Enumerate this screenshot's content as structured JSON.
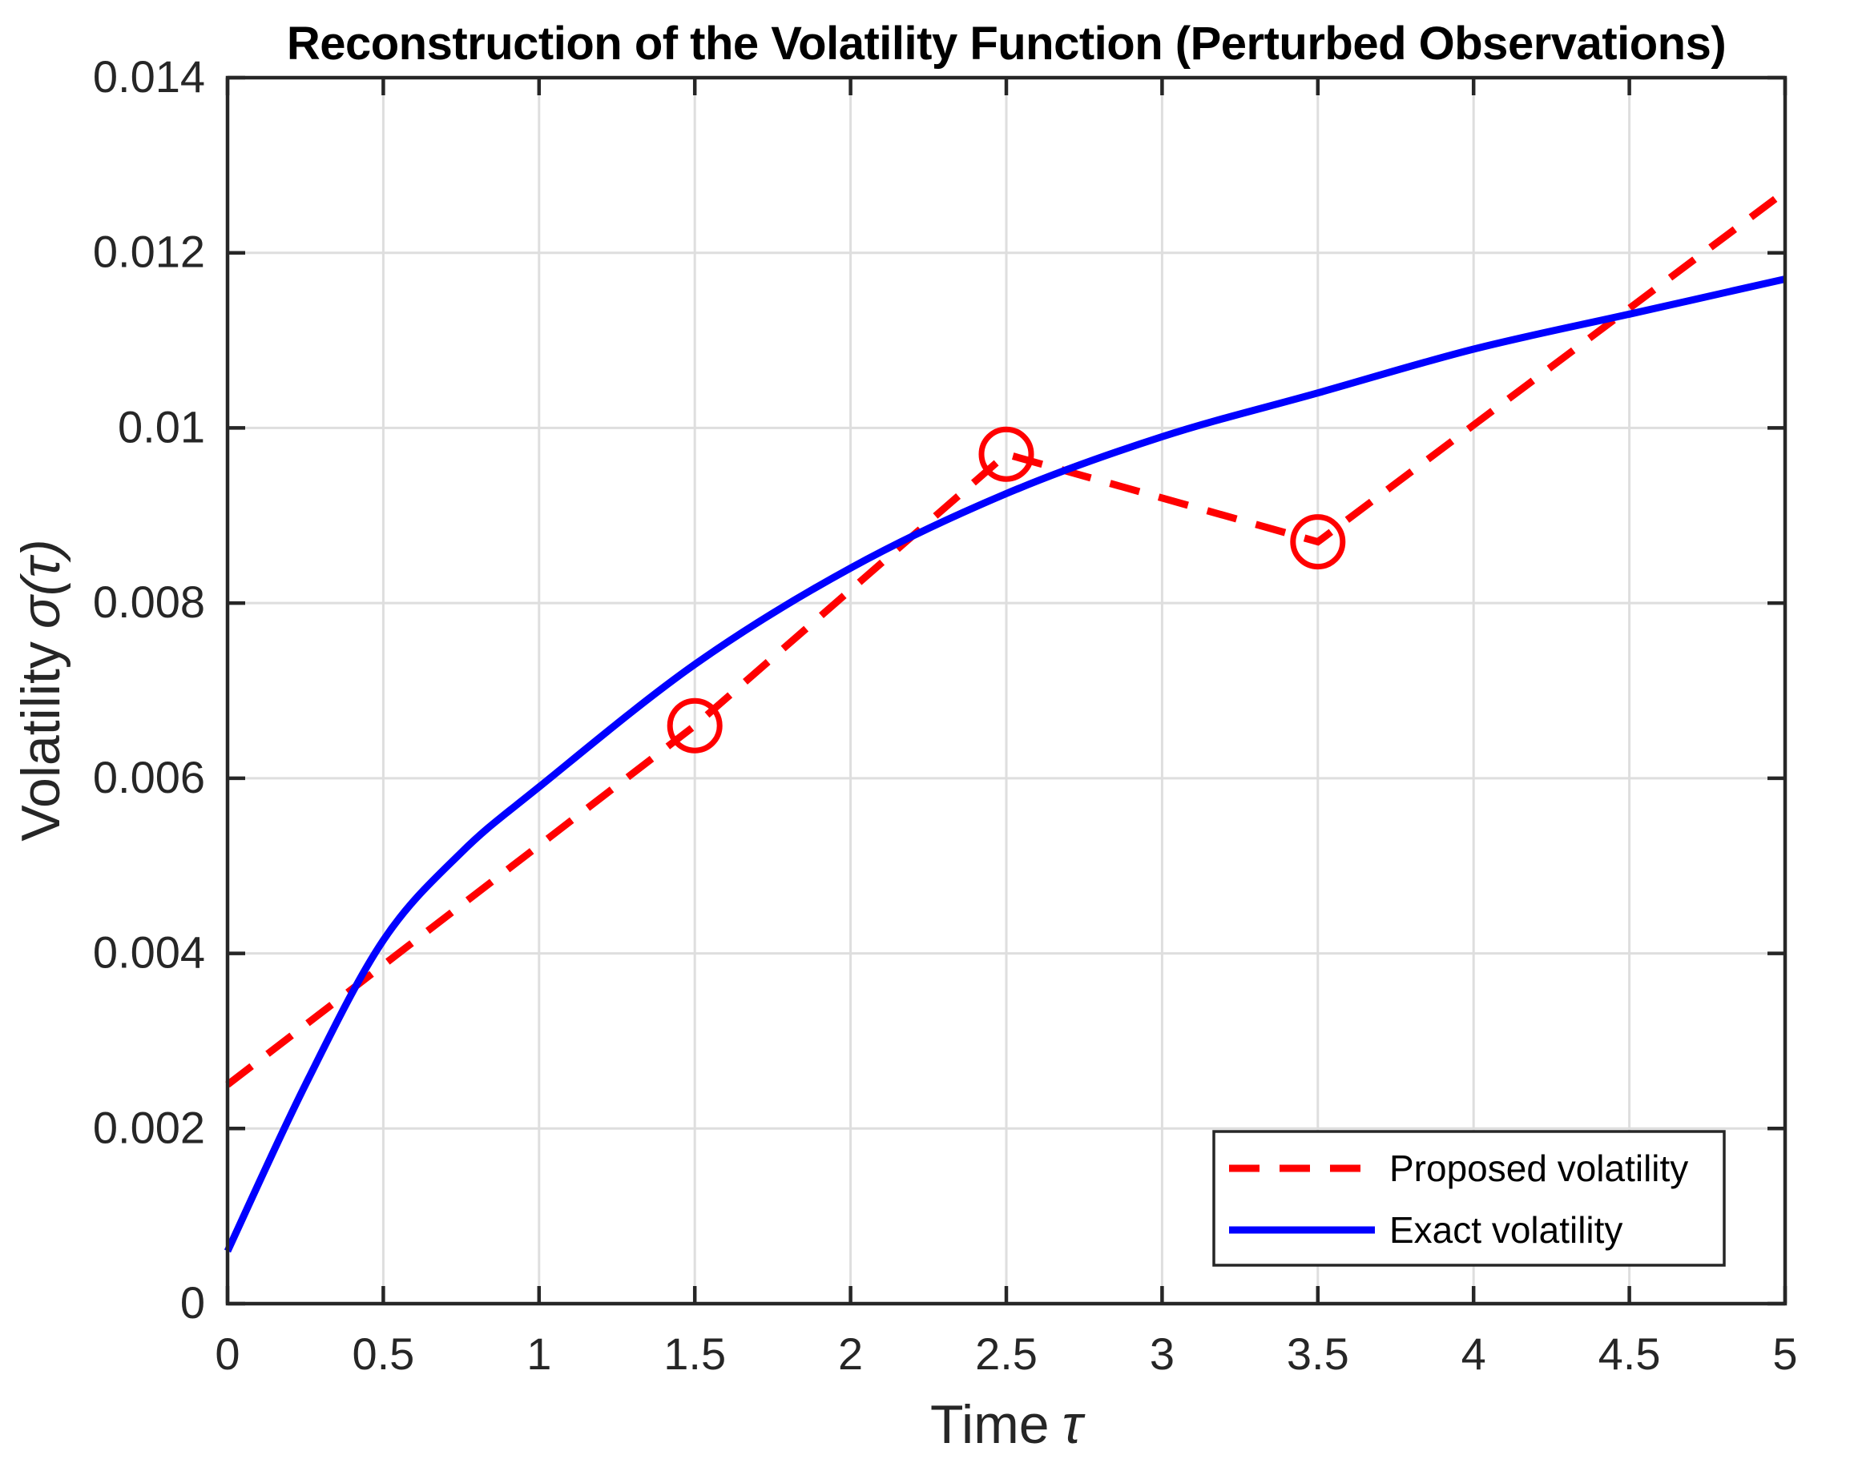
{
  "figure": {
    "xlabel": "Time",
    "xlabel_symbol": "τ",
    "ylabel": "Volatility",
    "ylabel_symbol": "σ(τ)"
  },
  "palette": {
    "red": "#FF0000",
    "blue": "#0000FF",
    "grid": "#DEDEDE",
    "axis": "#262626",
    "tick_text": "#262626",
    "title_text": "#000000",
    "legend_border": "#262626",
    "background": "#FFFFFF"
  },
  "legend": {
    "position": "lower right",
    "entries": [
      {
        "label": "Proposed volatility",
        "style": "dashed",
        "color": "#FF0000"
      },
      {
        "label": "Exact volatility",
        "style": "solid",
        "color": "#0000FF"
      }
    ]
  },
  "chart_data": {
    "type": "line",
    "title": "Reconstruction of the Volatility Function (Perturbed Observations)",
    "xlabel": "Time τ",
    "ylabel": "Volatility σ(τ)",
    "xlim": [
      0,
      5
    ],
    "ylim": [
      0,
      0.014
    ],
    "grid": true,
    "legend_position": "lower right",
    "x_ticks": {
      "values": [
        0,
        0.5,
        1,
        1.5,
        2,
        2.5,
        3,
        3.5,
        4,
        4.5,
        5
      ],
      "labels": [
        "0",
        "0.5",
        "1",
        "1.5",
        "2",
        "2.5",
        "3",
        "3.5",
        "4",
        "4.5",
        "5"
      ]
    },
    "y_ticks": {
      "values": [
        0,
        0.002,
        0.004,
        0.006,
        0.008,
        0.01,
        0.012,
        0.014
      ],
      "labels": [
        "0",
        "0.002",
        "0.004",
        "0.006",
        "0.008",
        "0.01",
        "0.012",
        "0.014"
      ]
    },
    "series": [
      {
        "name": "Proposed volatility",
        "type": "dashed_polyline_with_markers",
        "color": "#FF0000",
        "x": [
          0,
          1.5,
          2.5,
          3.5,
          5
        ],
        "y": [
          0.0025,
          0.0066,
          0.0097,
          0.0087,
          0.0127
        ],
        "markers": {
          "shape": "open_circle",
          "x": [
            1.5,
            2.5,
            3.5
          ],
          "y": [
            0.0066,
            0.0097,
            0.0087
          ]
        }
      },
      {
        "name": "Exact volatility",
        "type": "smooth_line",
        "color": "#0000FF",
        "x": [
          0,
          0.25,
          0.5,
          0.75,
          1,
          1.5,
          2,
          2.5,
          3,
          3.5,
          4,
          4.5,
          5
        ],
        "y": [
          0.0006,
          0.0025,
          0.00415,
          0.00515,
          0.0059,
          0.0073,
          0.0084,
          0.00925,
          0.0099,
          0.0104,
          0.0109,
          0.0113,
          0.0117
        ]
      }
    ]
  }
}
